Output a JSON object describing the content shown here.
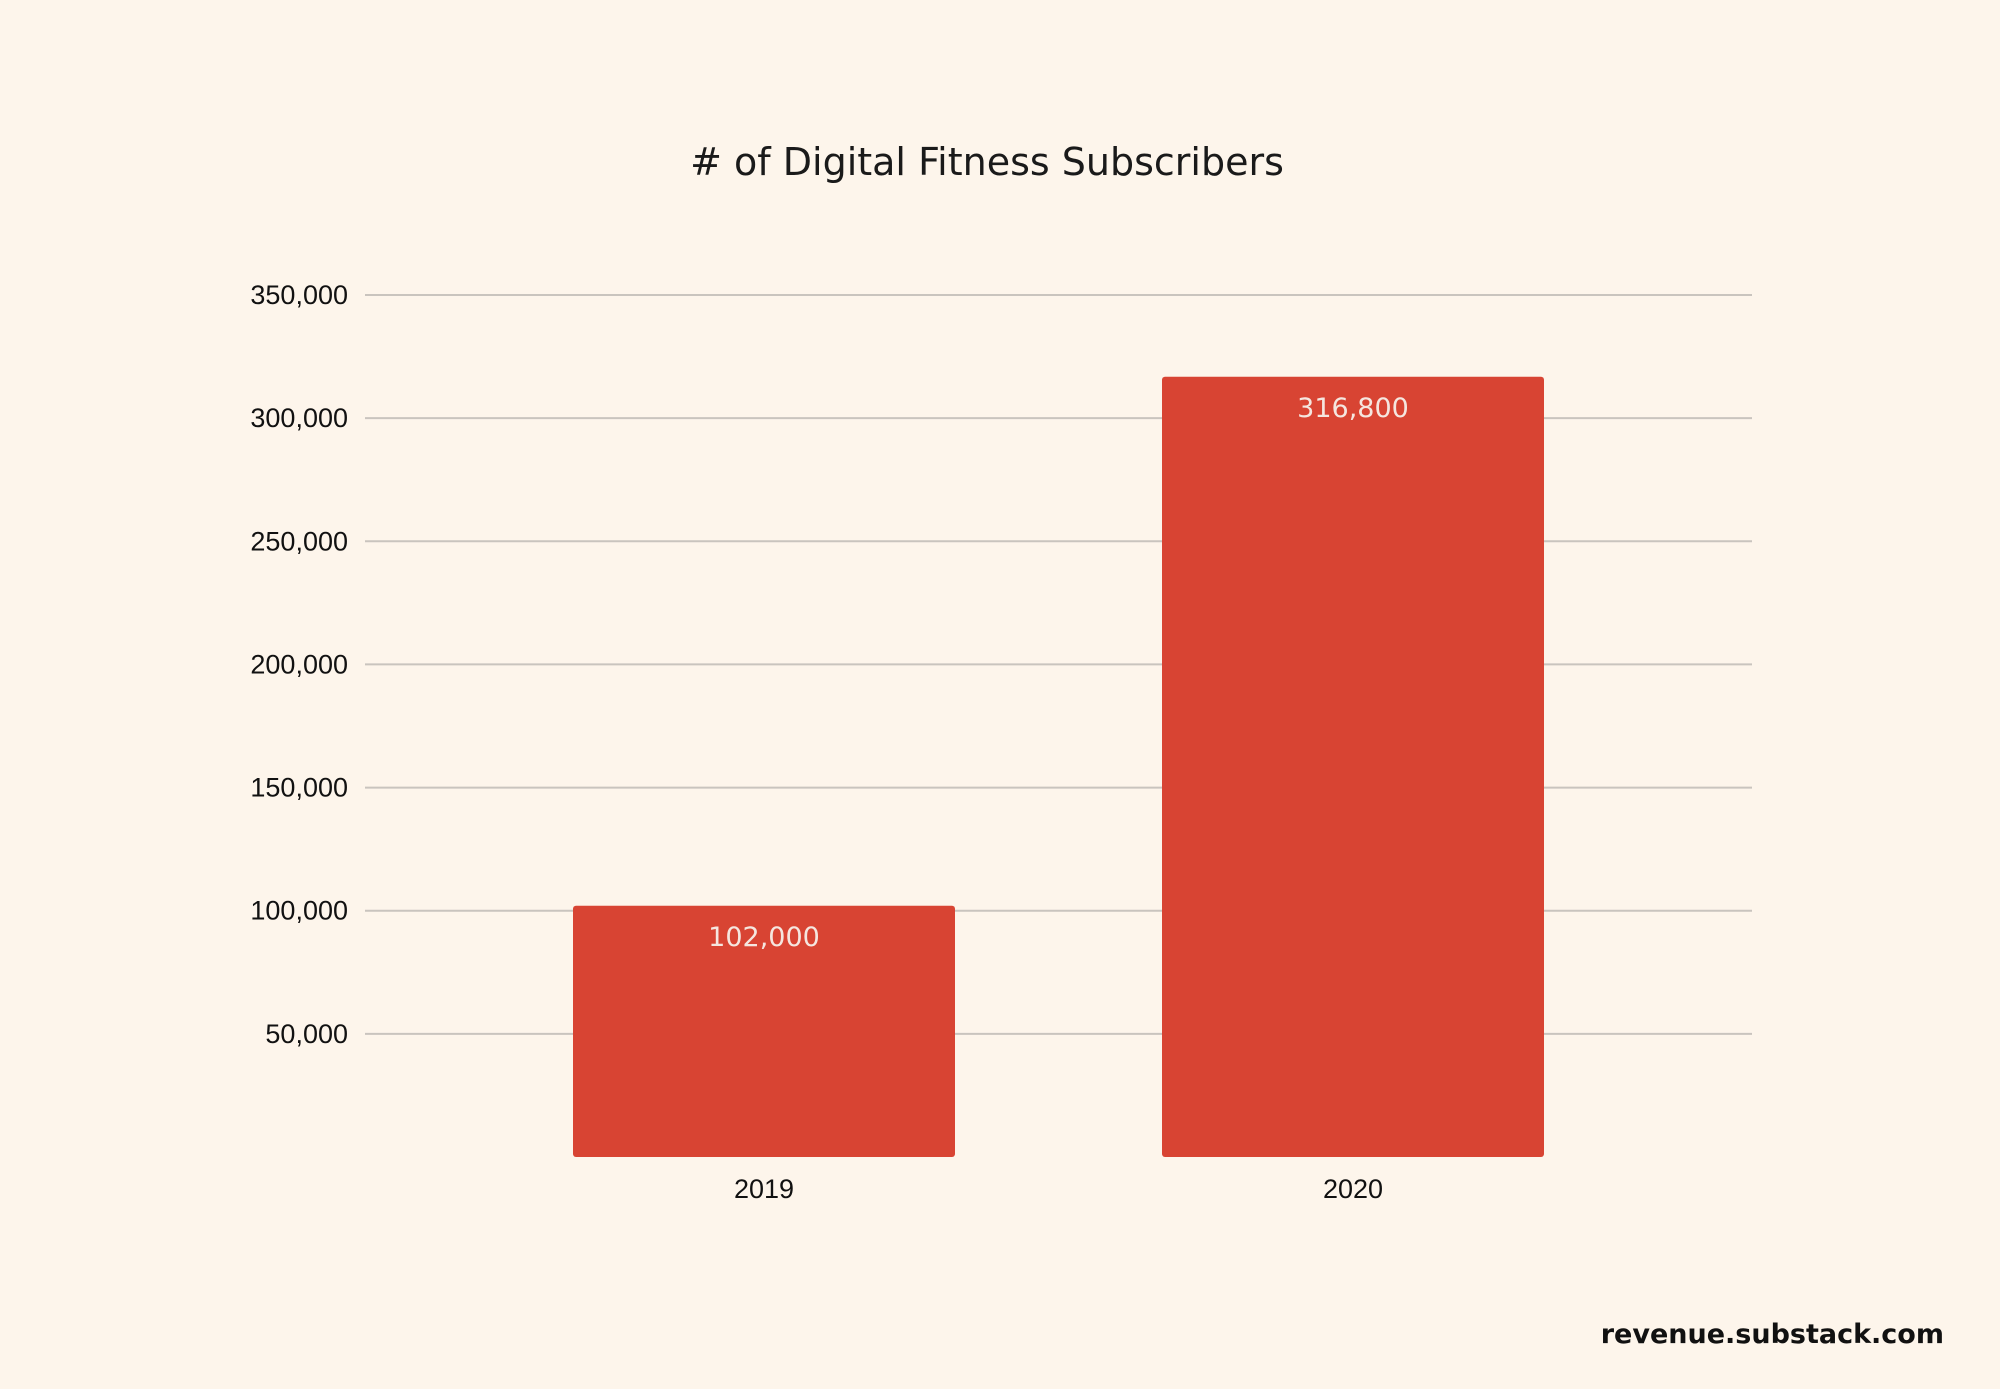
{
  "chart_data": {
    "type": "bar",
    "title": "# of Digital Fitness Subscribers",
    "xlabel": "",
    "ylabel": "",
    "categories": [
      "2019",
      "2020"
    ],
    "values": [
      102000,
      316800
    ],
    "data_labels": [
      "102,000",
      "316,800"
    ],
    "yticks": [
      50000,
      100000,
      150000,
      200000,
      250000,
      300000,
      350000
    ],
    "ytick_labels": [
      "50,000",
      "100,000",
      "150,000",
      "200,000",
      "250,000",
      "300,000",
      "350,000"
    ],
    "ylim": [
      0,
      350000
    ],
    "grid": true,
    "legend": "none",
    "colors": {
      "bar": "#D84433",
      "background": "#FDF5EB",
      "grid": "#C9C4BE",
      "data_label": "#F5E6DF"
    }
  },
  "footer": {
    "credit": "revenue.substack.com"
  }
}
